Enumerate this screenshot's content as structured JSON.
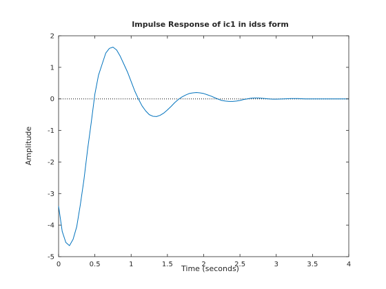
{
  "chart_data": {
    "type": "line",
    "title": "Impulse Response of ic1 in idss form",
    "xlabel": "Time (seconds)",
    "ylabel": "Amplitude",
    "xlim": [
      0,
      4
    ],
    "ylim": [
      -5,
      2
    ],
    "xticks": [
      "0",
      "0.5",
      "1",
      "1.5",
      "2",
      "2.5",
      "3",
      "3.5",
      "4"
    ],
    "yticks": [
      "-5",
      "-4",
      "-3",
      "-2",
      "-1",
      "0",
      "1",
      "2"
    ],
    "grid": false,
    "reference_line": {
      "y": 0,
      "style": "dotted"
    },
    "series": [
      {
        "color": "#0072bd",
        "x": [
          0,
          0.05,
          0.1,
          0.15,
          0.2,
          0.25,
          0.3,
          0.35,
          0.4,
          0.45,
          0.5,
          0.55,
          0.6,
          0.65,
          0.7,
          0.75,
          0.8,
          0.85,
          0.9,
          0.95,
          1.0,
          1.05,
          1.1,
          1.15,
          1.2,
          1.25,
          1.3,
          1.35,
          1.4,
          1.45,
          1.5,
          1.55,
          1.6,
          1.65,
          1.7,
          1.75,
          1.8,
          1.85,
          1.9,
          1.95,
          2.0,
          2.05,
          2.1,
          2.15,
          2.2,
          2.25,
          2.3,
          2.35,
          2.4,
          2.45,
          2.5,
          2.55,
          2.6,
          2.65,
          2.7,
          2.75,
          2.8,
          2.85,
          2.9,
          2.95,
          3.0,
          3.1,
          3.2,
          3.3,
          3.4,
          3.5,
          3.6,
          3.7,
          3.8,
          3.9,
          4.0
        ],
        "y": [
          -3.4,
          -4.2,
          -4.55,
          -4.65,
          -4.45,
          -4.05,
          -3.35,
          -2.55,
          -1.6,
          -0.75,
          0.15,
          0.75,
          1.1,
          1.45,
          1.6,
          1.64,
          1.55,
          1.35,
          1.1,
          0.85,
          0.55,
          0.25,
          0.0,
          -0.22,
          -0.38,
          -0.5,
          -0.55,
          -0.56,
          -0.52,
          -0.45,
          -0.35,
          -0.24,
          -0.12,
          -0.02,
          0.06,
          0.12,
          0.17,
          0.19,
          0.2,
          0.19,
          0.17,
          0.13,
          0.09,
          0.04,
          -0.01,
          -0.05,
          -0.07,
          -0.08,
          -0.08,
          -0.07,
          -0.05,
          -0.02,
          0.0,
          0.02,
          0.03,
          0.03,
          0.02,
          0.01,
          0.0,
          -0.01,
          -0.01,
          0.0,
          0.01,
          0.01,
          0.0,
          0.0,
          0.0,
          0.0,
          0.0,
          0.0,
          0.0
        ]
      }
    ]
  }
}
